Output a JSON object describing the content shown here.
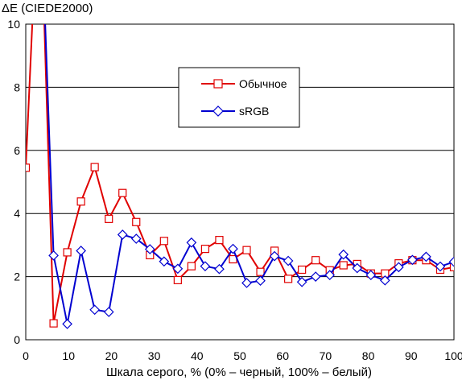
{
  "chart_data": {
    "type": "line",
    "ylabel": "ΔE (CIEDE2000)",
    "xlabel": "Шкала серого, % (0% – черный, 100% – белый)",
    "xlim": [
      0,
      100
    ],
    "ylim": [
      0,
      10
    ],
    "xticks": [
      "0",
      "10",
      "20",
      "30",
      "40",
      "50",
      "60",
      "70",
      "80",
      "90",
      "100"
    ],
    "yticks": [
      "0",
      "2",
      "4",
      "6",
      "8",
      "10"
    ],
    "grid": "horizontal",
    "legend_position": "top-center",
    "series": [
      {
        "name": "Обычное",
        "color": "#e00000",
        "marker": "square",
        "x": [
          0,
          3.2,
          6.5,
          9.7,
          12.9,
          16.1,
          19.4,
          22.6,
          25.8,
          29,
          32.3,
          35.5,
          38.7,
          41.9,
          45.2,
          48.4,
          51.6,
          54.8,
          58.1,
          61.3,
          64.5,
          67.7,
          71,
          74.2,
          77.4,
          80.6,
          83.9,
          87.1,
          90.3,
          93.5,
          96.8,
          100
        ],
        "y": [
          5.45,
          15,
          0.52,
          2.77,
          4.38,
          5.47,
          3.83,
          4.65,
          3.73,
          2.68,
          3.13,
          1.89,
          2.33,
          2.88,
          3.16,
          2.55,
          2.84,
          2.15,
          2.82,
          1.93,
          2.22,
          2.52,
          2.2,
          2.36,
          2.4,
          2.1,
          2.1,
          2.42,
          2.52,
          2.52,
          2.22,
          2.3
        ]
      },
      {
        "name": "sRGB",
        "color": "#0000d0",
        "marker": "diamond",
        "x": [
          3.2,
          6.5,
          9.7,
          12.9,
          16.1,
          19.4,
          22.6,
          25.8,
          29,
          32.3,
          35.5,
          38.7,
          41.9,
          45.2,
          48.4,
          51.6,
          54.8,
          58.1,
          61.3,
          64.5,
          67.7,
          71,
          74.2,
          77.4,
          80.6,
          83.9,
          87.1,
          90.3,
          93.5,
          96.8,
          100
        ],
        "y": [
          15,
          2.67,
          0.5,
          2.82,
          0.95,
          0.88,
          3.33,
          3.2,
          2.87,
          2.48,
          2.25,
          3.08,
          2.33,
          2.24,
          2.88,
          1.8,
          1.87,
          2.65,
          2.5,
          1.83,
          2.0,
          2.05,
          2.7,
          2.27,
          2.05,
          1.88,
          2.3,
          2.53,
          2.63,
          2.32,
          2.47
        ]
      }
    ]
  }
}
